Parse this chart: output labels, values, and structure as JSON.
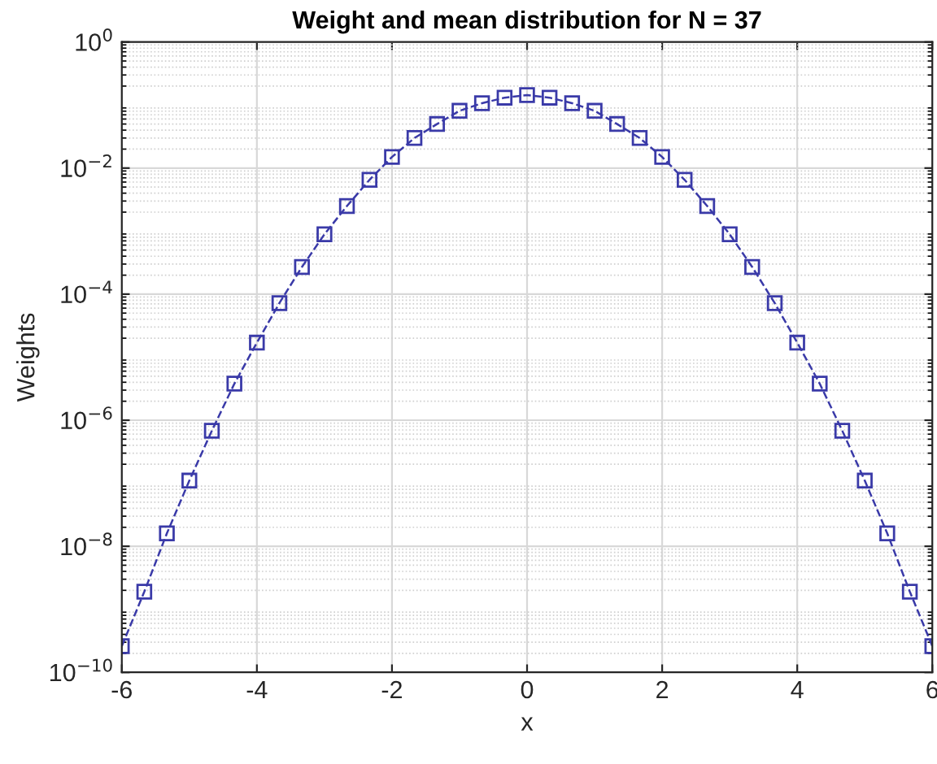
{
  "chart_data": {
    "type": "line",
    "title": "Weight and mean distribution for N = 37",
    "xlabel": "x",
    "ylabel": "Weights",
    "x": [
      -6,
      -5.667,
      -5.333,
      -5,
      -4.667,
      -4.333,
      -4,
      -3.667,
      -3.333,
      -3,
      -2.667,
      -2.333,
      -2,
      -1.667,
      -1.333,
      -1,
      -0.667,
      -0.333,
      0,
      0.333,
      0.667,
      1,
      1.333,
      1.667,
      2,
      2.333,
      2.667,
      3,
      3.333,
      3.667,
      4,
      4.333,
      4.667,
      5,
      5.333,
      5.667,
      6
    ],
    "series": [
      {
        "color": "#3a3aa8",
        "values": [
          2.6e-10,
          1.9e-09,
          1.6e-08,
          1.1e-07,
          6.8e-07,
          3.8e-06,
          1.7e-05,
          7.2e-05,
          0.00027,
          0.00089,
          0.0025,
          0.0065,
          0.015,
          0.03,
          0.05,
          0.081,
          0.107,
          0.131,
          0.144,
          0.131,
          0.107,
          0.081,
          0.05,
          0.03,
          0.015,
          0.0065,
          0.0025,
          0.00089,
          0.00027,
          7.2e-05,
          1.7e-05,
          3.8e-06,
          6.8e-07,
          1.1e-07,
          1.6e-08,
          1.9e-09,
          2.6e-10
        ]
      }
    ],
    "xlim": [
      -6,
      6
    ],
    "xticks": [
      -6,
      -4,
      -2,
      0,
      2,
      4,
      6
    ],
    "ylim": [
      1e-10,
      1
    ],
    "yticks": [
      {
        "value": 1e-10,
        "label": "10$^{−10}$"
      },
      {
        "value": 1e-08,
        "label": "10$^{−8}$"
      },
      {
        "value": 1e-06,
        "label": "10$^{−6}$"
      },
      {
        "value": 0.0001,
        "label": "10$^{−4}$"
      },
      {
        "value": 0.01,
        "label": "10$^{−2}$"
      },
      {
        "value": 1,
        "label": "10$^{0}$"
      }
    ],
    "log": "y",
    "grid": true,
    "marker": "square",
    "line_style": "dashed"
  }
}
